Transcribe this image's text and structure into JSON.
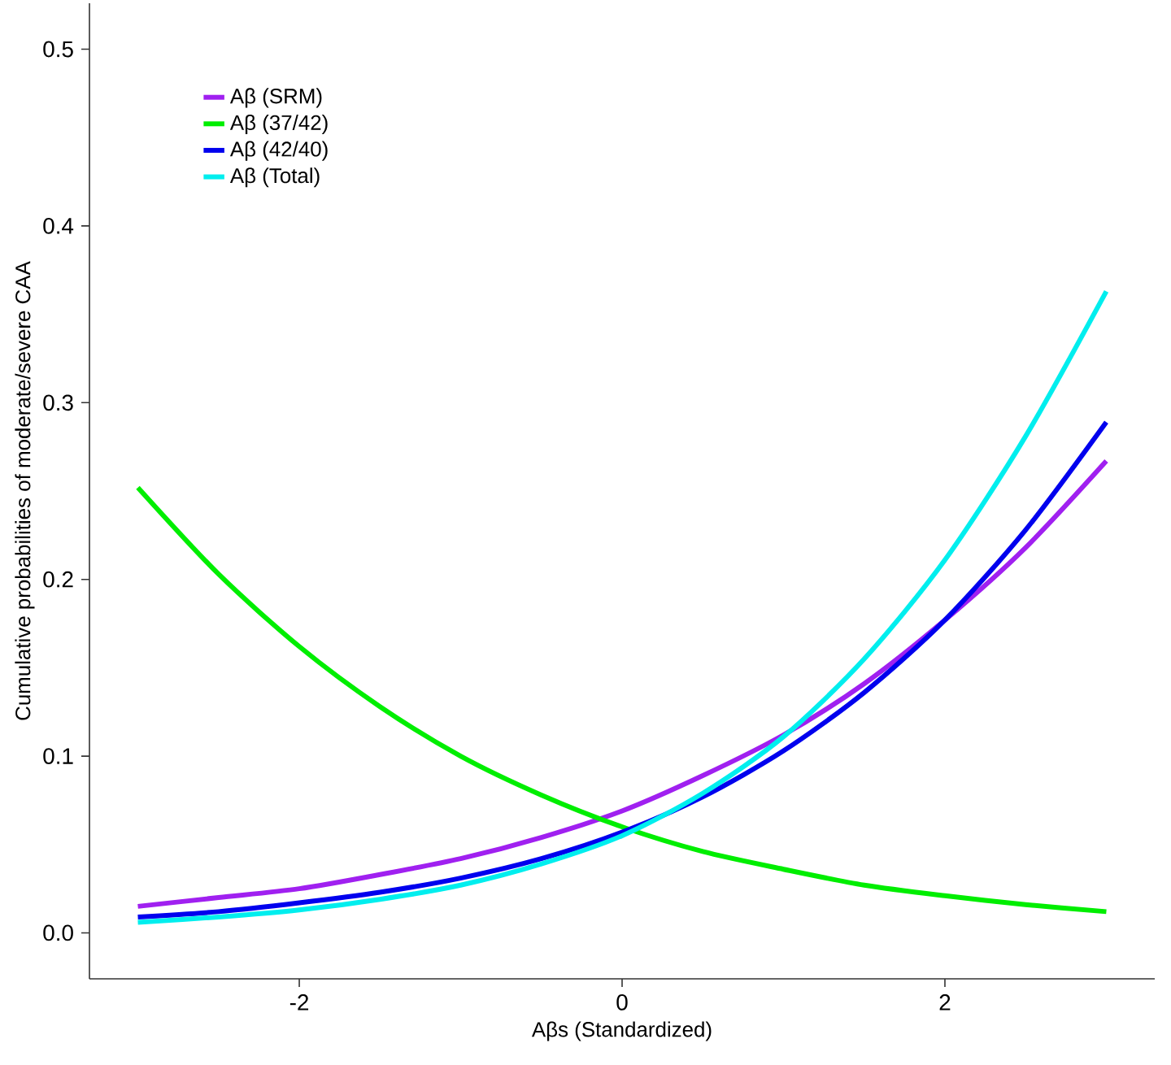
{
  "chart_data": {
    "type": "line",
    "xlabel": "Aβs (Standardized)",
    "ylabel": "Cumulative probabilities of moderate/severe CAA",
    "x": [
      -3,
      -2.5,
      -2,
      -1.5,
      -1,
      -0.5,
      0,
      0.5,
      1,
      1.5,
      2,
      2.5,
      3
    ],
    "series": [
      {
        "name": "Aβ (SRM)",
        "color": "#a020f0",
        "values": [
          0.015,
          0.02,
          0.025,
          0.033,
          0.042,
          0.054,
          0.069,
          0.089,
          0.112,
          0.141,
          0.177,
          0.218,
          0.267
        ]
      },
      {
        "name": "Aβ (37/42)",
        "color": "#00ee00",
        "values": [
          0.252,
          0.203,
          0.162,
          0.128,
          0.1,
          0.078,
          0.06,
          0.046,
          0.036,
          0.027,
          0.021,
          0.016,
          0.012
        ]
      },
      {
        "name": "Aβ (42/40)",
        "color": "#0000ee",
        "values": [
          0.009,
          0.012,
          0.017,
          0.023,
          0.031,
          0.042,
          0.057,
          0.077,
          0.103,
          0.136,
          0.177,
          0.228,
          0.289
        ]
      },
      {
        "name": "Aβ (Total)",
        "color": "#00eeee",
        "values": [
          0.006,
          0.009,
          0.013,
          0.019,
          0.027,
          0.039,
          0.055,
          0.079,
          0.111,
          0.155,
          0.211,
          0.281,
          0.363
        ]
      }
    ],
    "xlim": [
      -3.3,
      3.3
    ],
    "ylim": [
      -0.026,
      0.526
    ],
    "xticks": [
      -2,
      0,
      2
    ],
    "yticks": [
      {
        "value": 0,
        "label": "0.0"
      },
      {
        "value": 0.1,
        "label": "0.1"
      },
      {
        "value": 0.2,
        "label": "0.2"
      },
      {
        "value": 0.3,
        "label": "0.3"
      },
      {
        "value": 0.4,
        "label": "0.4"
      },
      {
        "value": 0.5,
        "label": "0.5"
      }
    ],
    "grid": false,
    "legend": "top left"
  }
}
